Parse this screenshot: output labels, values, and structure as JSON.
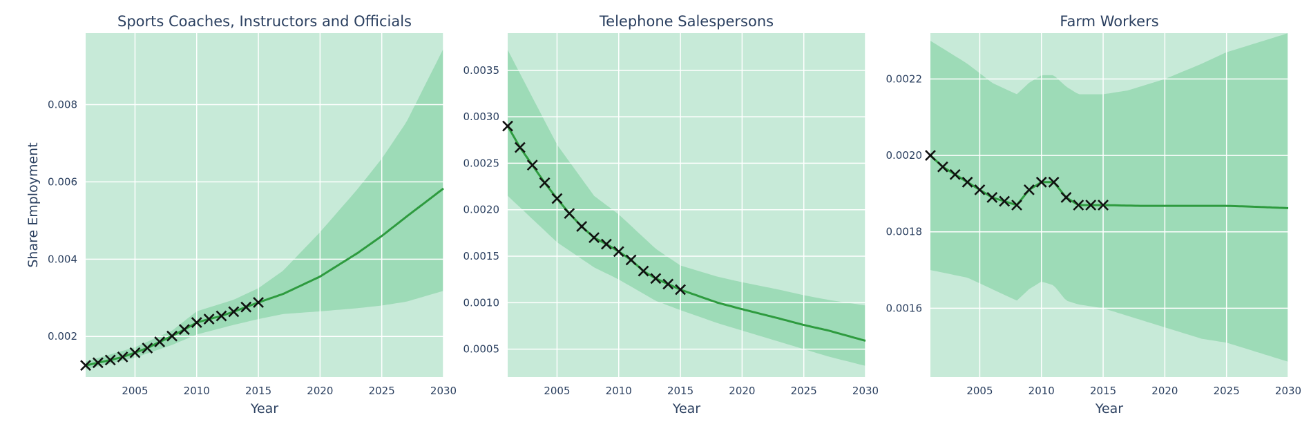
{
  "chart_data": [
    {
      "type": "line",
      "title": "Sports Coaches, Instructors and Officials",
      "xlabel": "Year",
      "ylabel": "Share Employment",
      "xlim": [
        2001,
        2030
      ],
      "ylim": [
        0.00095,
        0.00985
      ],
      "xticks": [
        2005,
        2010,
        2015,
        2020,
        2025,
        2030
      ],
      "yticks": [
        0.002,
        0.004,
        0.006,
        0.008
      ],
      "ytick_labels": [
        "0.002",
        "0.004",
        "0.006",
        "0.008"
      ],
      "observed": {
        "x": [
          2001,
          2002,
          2003,
          2004,
          2005,
          2006,
          2007,
          2008,
          2009,
          2010,
          2011,
          2012,
          2013,
          2014,
          2015
        ],
        "y": [
          0.00125,
          0.00132,
          0.00139,
          0.00147,
          0.00158,
          0.0017,
          0.00186,
          0.00201,
          0.00218,
          0.00236,
          0.00245,
          0.00253,
          0.00264,
          0.00276,
          0.00288
        ]
      },
      "forecast": {
        "x": [
          2015,
          2017,
          2020,
          2023,
          2025,
          2027,
          2030
        ],
        "y": [
          0.00288,
          0.0031,
          0.00355,
          0.00415,
          0.0046,
          0.0051,
          0.00583
        ]
      },
      "band_inner": {
        "x": [
          2001,
          2005,
          2008,
          2010,
          2013,
          2015,
          2017,
          2020,
          2023,
          2025,
          2027,
          2030
        ],
        "lower": [
          0.00115,
          0.00145,
          0.00178,
          0.00205,
          0.0023,
          0.00245,
          0.00258,
          0.00265,
          0.00273,
          0.0028,
          0.0029,
          0.00318
        ],
        "upper": [
          0.00135,
          0.00172,
          0.00215,
          0.00265,
          0.00295,
          0.00325,
          0.0037,
          0.0047,
          0.0058,
          0.0066,
          0.00755,
          0.00945
        ]
      },
      "band_outer": {
        "x": [
          2001,
          2030
        ],
        "lower": [
          0.00095,
          0.00095
        ],
        "upper": [
          0.00985,
          0.00985
        ]
      },
      "grid": true
    },
    {
      "type": "line",
      "title": "Telephone Salespersons",
      "xlabel": "Year",
      "ylabel": "",
      "xlim": [
        2001,
        2030
      ],
      "ylim": [
        0.0002,
        0.0039
      ],
      "xticks": [
        2005,
        2010,
        2015,
        2020,
        2025,
        2030
      ],
      "yticks": [
        0.0005,
        0.001,
        0.0015,
        0.002,
        0.0025,
        0.003,
        0.0035
      ],
      "ytick_labels": [
        "0.0005",
        "0.0010",
        "0.0015",
        "0.0020",
        "0.0025",
        "0.0030",
        "0.0035"
      ],
      "observed": {
        "x": [
          2001,
          2002,
          2003,
          2004,
          2005,
          2006,
          2007,
          2008,
          2009,
          2010,
          2011,
          2012,
          2013,
          2014,
          2015
        ],
        "y": [
          0.0029,
          0.00267,
          0.00248,
          0.00229,
          0.00212,
          0.00196,
          0.00182,
          0.0017,
          0.00163,
          0.00155,
          0.00146,
          0.00134,
          0.00126,
          0.0012,
          0.00114
        ]
      },
      "forecast": {
        "x": [
          2015,
          2018,
          2020,
          2023,
          2025,
          2027,
          2030
        ],
        "y": [
          0.00114,
          0.001,
          0.00093,
          0.00083,
          0.00076,
          0.0007,
          0.00059
        ]
      },
      "band_inner": {
        "x": [
          2001,
          2005,
          2008,
          2010,
          2013,
          2015,
          2018,
          2020,
          2023,
          2025,
          2027,
          2030
        ],
        "lower": [
          0.00215,
          0.00165,
          0.00138,
          0.00125,
          0.00102,
          0.00092,
          0.00078,
          0.0007,
          0.00058,
          0.0005,
          0.00042,
          0.00032
        ],
        "upper": [
          0.00372,
          0.0027,
          0.00215,
          0.00195,
          0.00158,
          0.0014,
          0.00128,
          0.00122,
          0.00114,
          0.00108,
          0.00103,
          0.00097
        ]
      },
      "band_outer": {
        "x": [
          2001,
          2030
        ],
        "lower": [
          0.0002,
          0.0002
        ],
        "upper": [
          0.0039,
          0.0039
        ]
      },
      "grid": true
    },
    {
      "type": "line",
      "title": "Farm Workers",
      "xlabel": "Year",
      "ylabel": "",
      "xlim": [
        2001,
        2030
      ],
      "ylim": [
        0.00142,
        0.00232
      ],
      "xticks": [
        2005,
        2010,
        2015,
        2020,
        2025,
        2030
      ],
      "yticks": [
        0.0016,
        0.0018,
        0.002,
        0.0022
      ],
      "ytick_labels": [
        "0.0016",
        "0.0018",
        "0.0020",
        "0.0022"
      ],
      "observed": {
        "x": [
          2001,
          2002,
          2003,
          2004,
          2005,
          2006,
          2007,
          2008,
          2009,
          2010,
          2011,
          2012,
          2013,
          2014,
          2015
        ],
        "y": [
          0.002,
          0.00197,
          0.00195,
          0.00193,
          0.00191,
          0.00189,
          0.00188,
          0.00187,
          0.00191,
          0.00193,
          0.00193,
          0.00189,
          0.00187,
          0.00187,
          0.00187
        ]
      },
      "forecast": {
        "x": [
          2015,
          2018,
          2020,
          2023,
          2025,
          2027,
          2030
        ],
        "y": [
          0.00187,
          0.001868,
          0.001868,
          0.001868,
          0.001868,
          0.001866,
          0.001862
        ]
      },
      "band_inner": {
        "x": [
          2001,
          2004,
          2006,
          2008,
          2009,
          2010,
          2011,
          2012,
          2013,
          2015,
          2017,
          2020,
          2023,
          2025,
          2027,
          2030
        ],
        "lower": [
          0.0017,
          0.00168,
          0.00165,
          0.00162,
          0.00165,
          0.00167,
          0.00166,
          0.00162,
          0.00161,
          0.0016,
          0.00158,
          0.00155,
          0.00152,
          0.00151,
          0.00149,
          0.00146
        ],
        "upper": [
          0.0023,
          0.00224,
          0.00219,
          0.00216,
          0.00219,
          0.00221,
          0.00221,
          0.00218,
          0.00216,
          0.00216,
          0.00217,
          0.0022,
          0.00224,
          0.00227,
          0.00229,
          0.00232
        ]
      },
      "band_outer": {
        "x": [
          2001,
          2030
        ],
        "lower": [
          0.00142,
          0.00142
        ],
        "upper": [
          0.00232,
          0.00232
        ]
      },
      "grid": true
    }
  ],
  "colors": {
    "band_outer": "#c7ead8",
    "band_inner": "#9ddbb7",
    "line": "#2e9b3f",
    "marker": "#111111",
    "grid": "#ffffff",
    "text": "#2a3f5f"
  }
}
